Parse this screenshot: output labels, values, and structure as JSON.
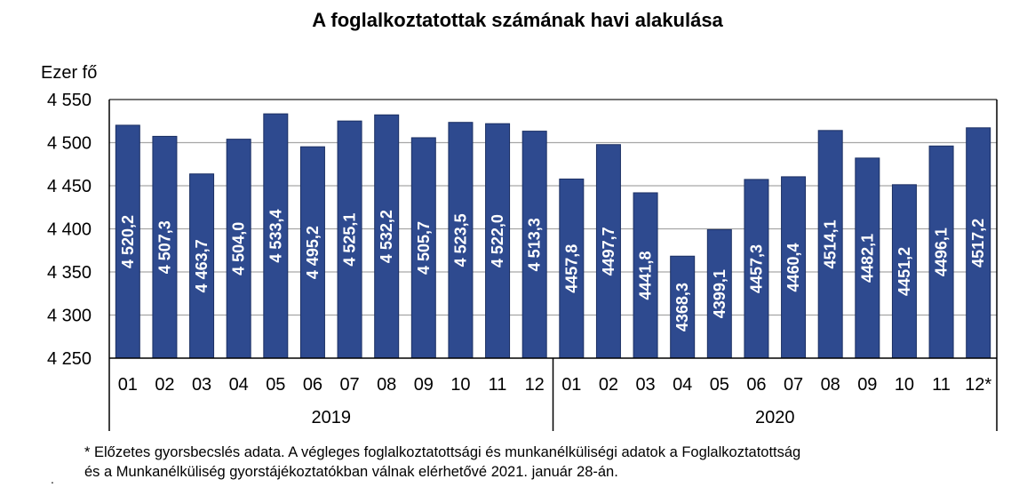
{
  "chart_data": {
    "type": "bar",
    "title": "A foglalkoztatottak számának havi alakulása",
    "ylabel": "Ezer fő",
    "ylim": [
      4250,
      4550
    ],
    "yticks": [
      4250,
      4300,
      4350,
      4400,
      4450,
      4500,
      4550
    ],
    "ytick_labels": [
      "4 250",
      "4 300",
      "4 350",
      "4 400",
      "4 450",
      "4 500",
      "4 550"
    ],
    "grid": true,
    "bar_color": "#2e4a8f",
    "categories": [
      "01",
      "02",
      "03",
      "04",
      "05",
      "06",
      "07",
      "08",
      "09",
      "10",
      "11",
      "12",
      "01",
      "02",
      "03",
      "04",
      "05",
      "06",
      "07",
      "08",
      "09",
      "10",
      "11",
      "12*"
    ],
    "values": [
      4520.2,
      4507.3,
      4463.7,
      4504.0,
      4533.4,
      4495.2,
      4525.1,
      4532.2,
      4505.7,
      4523.5,
      4522.0,
      4513.3,
      4457.8,
      4497.7,
      4441.8,
      4368.3,
      4399.1,
      4457.3,
      4460.4,
      4514.1,
      4482.1,
      4451.2,
      4496.1,
      4517.2
    ],
    "data_labels": [
      "4 520,2",
      "4 507,3",
      "4 463,7",
      "4 504,0",
      "4 533,4",
      "4 495,2",
      "4 525,1",
      "4 532,2",
      "4 505,7",
      "4 523,5",
      "4 522,0",
      "4 513,3",
      "4457,8",
      "4497,7",
      "4441,8",
      "4368,3",
      "4399,1",
      "4457,3",
      "4460,4",
      "4514,1",
      "4482,1",
      "4451,2",
      "4496,1",
      "4517,2"
    ],
    "groups": [
      {
        "label": "2019",
        "count": 12
      },
      {
        "label": "2020",
        "count": 12
      }
    ]
  },
  "footnote": {
    "line1": "* Előzetes gyorsbecslés adata. A végleges foglalkoztatottsági és munkanélküliségi adatok a Foglalkoztatottság",
    "line2": "és a Munkanélküliség gyorstájékoztatókban válnak elérhetővé 2021. január 28-án.",
    "marker": "."
  }
}
